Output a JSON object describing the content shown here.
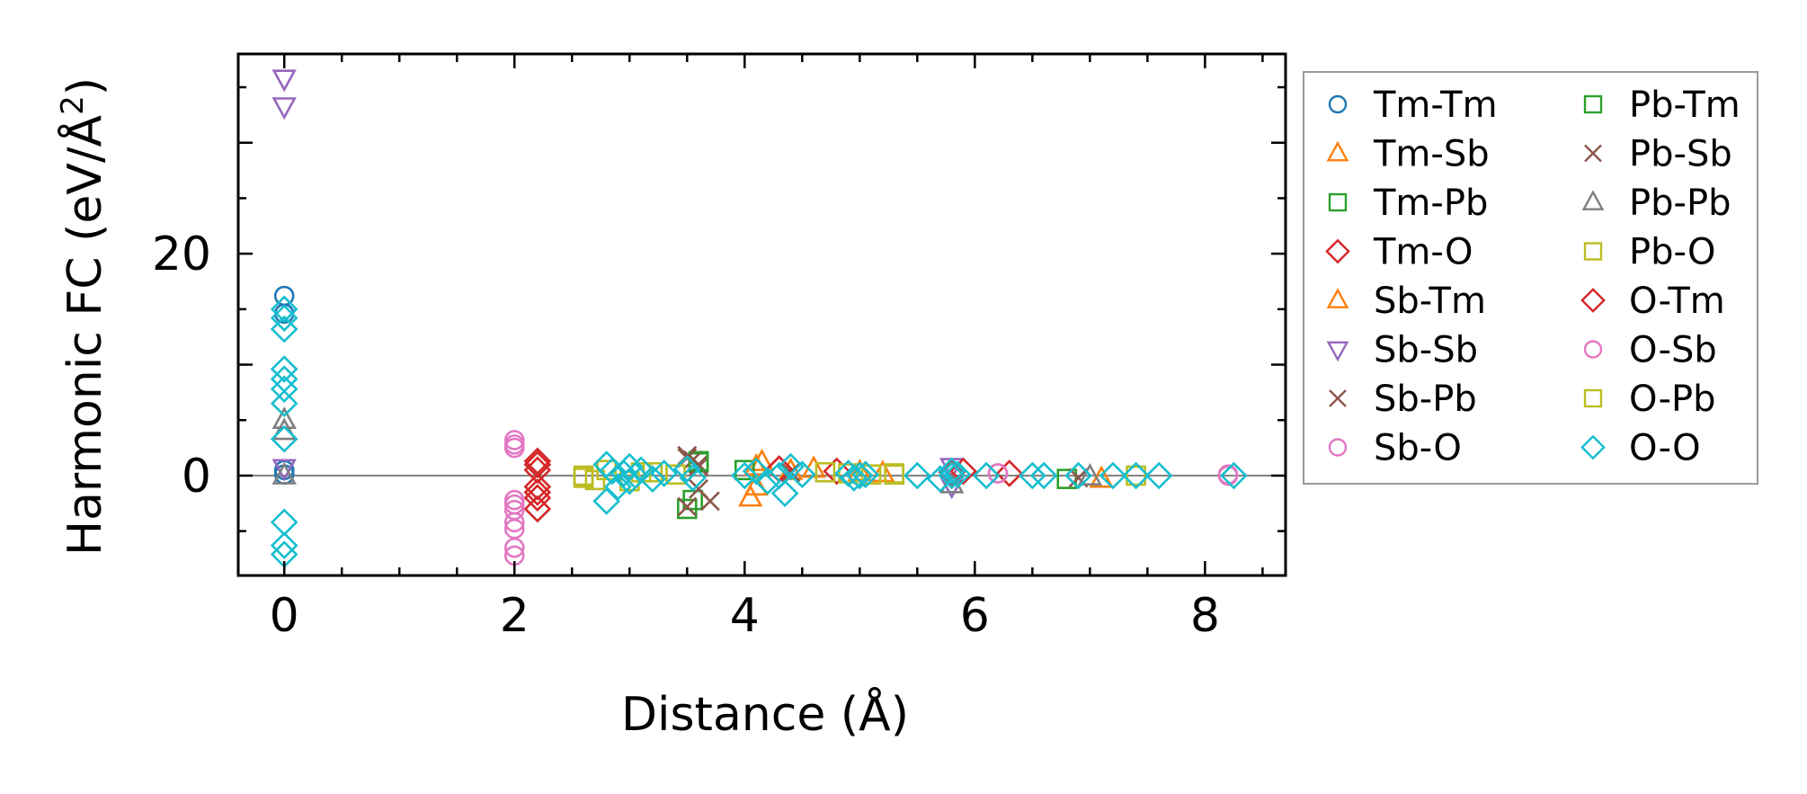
{
  "chart_data": {
    "type": "scatter",
    "title": "",
    "xlabel": "Distance (Å)",
    "ylabel_main": "Harmonic FC (eV/Å",
    "ylabel_sup": "2",
    "ylabel_close": ")",
    "xlim": [
      -0.4,
      8.7
    ],
    "ylim": [
      -9,
      38
    ],
    "xticks": [
      0,
      2,
      4,
      6,
      8
    ],
    "xtick_labels": [
      "0",
      "2",
      "4",
      "6",
      "8"
    ],
    "yticks": [
      0,
      20
    ],
    "ytick_labels": [
      "0",
      "20"
    ],
    "x_minor_step": 0.5,
    "y_minor_step": 5,
    "zero_line": true,
    "legend_position": "outside-right",
    "legend_columns": 2,
    "series": [
      {
        "name": "Tm-Tm",
        "marker": "circle",
        "color": "#1f77b4",
        "x": [
          0,
          0,
          0,
          0
        ],
        "y": [
          16.2,
          14.6,
          0.5,
          0.1
        ]
      },
      {
        "name": "Tm-Sb",
        "marker": "triangle-up",
        "color": "#ff7f0e",
        "x": [
          4.05,
          4.1,
          4.15,
          4.6,
          5.0
        ],
        "y": [
          -2.0,
          -1.0,
          1.2,
          0.6,
          0.3
        ]
      },
      {
        "name": "Tm-Pb",
        "marker": "square",
        "color": "#2ca02c",
        "x": [
          3.5,
          3.55,
          3.6,
          4.0
        ],
        "y": [
          -3.0,
          -2.2,
          1.2,
          0.5
        ]
      },
      {
        "name": "Tm-O",
        "marker": "diamond",
        "color": "#d62728",
        "x": [
          2.2,
          2.2,
          2.2,
          2.2,
          2.2,
          4.3,
          4.8,
          5.8,
          6.3
        ],
        "y": [
          1.3,
          0.5,
          -1.0,
          -2.0,
          -3.0,
          0.6,
          0.4,
          0.3,
          0.2
        ]
      },
      {
        "name": "Sb-Tm",
        "marker": "triangle-up",
        "color": "#ff7f0e",
        "x": [
          4.1,
          4.4,
          5.2,
          7.1
        ],
        "y": [
          0.8,
          0.4,
          0.2,
          -0.3
        ]
      },
      {
        "name": "Sb-Sb",
        "marker": "triangle-down",
        "color": "#9467bd",
        "x": [
          0,
          0,
          0,
          5.8,
          5.8
        ],
        "y": [
          35.8,
          33.3,
          0.7,
          0.8,
          -0.9
        ]
      },
      {
        "name": "Sb-Pb",
        "marker": "x",
        "color": "#8c564b",
        "x": [
          3.5,
          3.55,
          3.6,
          3.7,
          3.5,
          3.6
        ],
        "y": [
          1.8,
          1.4,
          0.8,
          -2.3,
          -2.8,
          1.0
        ]
      },
      {
        "name": "Sb-O",
        "marker": "circle",
        "color": "#e377c2",
        "x": [
          2.0,
          2.0,
          2.0,
          2.0,
          2.0,
          2.0,
          2.0,
          2.0,
          6.2,
          8.2
        ],
        "y": [
          3.2,
          2.5,
          -2.2,
          -3.1,
          -4.2,
          -4.8,
          -6.5,
          -7.2,
          0.2,
          0.1
        ]
      },
      {
        "name": "Pb-Tm",
        "marker": "square",
        "color": "#2ca02c",
        "x": [
          3.6,
          6.8
        ],
        "y": [
          1.3,
          -0.3
        ]
      },
      {
        "name": "Pb-Sb",
        "marker": "x",
        "color": "#8c564b",
        "x": [
          3.5,
          3.6,
          4.4,
          6.9
        ],
        "y": [
          1.6,
          -1.2,
          0.3,
          -0.2
        ]
      },
      {
        "name": "Pb-Pb",
        "marker": "triangle-up",
        "color": "#7f7f7f",
        "x": [
          0,
          0,
          0,
          5.8,
          7.0
        ],
        "y": [
          5.0,
          4.0,
          0.0,
          -0.8,
          -0.1
        ]
      },
      {
        "name": "Pb-O",
        "marker": "square",
        "color": "#bcbd22",
        "x": [
          2.6,
          2.7,
          3.1,
          4.9,
          5.3
        ],
        "y": [
          0.0,
          -0.4,
          0.3,
          0.2,
          0.1
        ]
      },
      {
        "name": "O-Tm",
        "marker": "diamond",
        "color": "#d62728",
        "x": [
          2.2,
          2.2,
          4.3,
          5.9
        ],
        "y": [
          1.0,
          -1.5,
          0.6,
          0.4
        ]
      },
      {
        "name": "O-Sb",
        "marker": "circle",
        "color": "#e377c2",
        "x": [
          2.0,
          2.0,
          6.2,
          8.2
        ],
        "y": [
          2.8,
          -2.6,
          0.2,
          0.0
        ]
      },
      {
        "name": "O-Pb",
        "marker": "square",
        "color": "#bcbd22",
        "x": [
          2.6,
          2.8,
          3.0,
          3.2,
          3.4,
          4.7,
          5.1,
          5.3,
          7.4
        ],
        "y": [
          -0.2,
          0.5,
          -0.5,
          0.3,
          0.1,
          0.3,
          0.1,
          0.2,
          0.0
        ]
      },
      {
        "name": "O-O",
        "marker": "diamond",
        "color": "#17becf",
        "x": [
          0,
          0,
          0,
          0,
          0,
          0,
          0,
          0,
          0,
          0,
          0,
          2.8,
          2.8,
          2.85,
          2.9,
          2.95,
          3.0,
          3.0,
          3.05,
          3.1,
          3.2,
          3.3,
          3.5,
          3.55,
          4.0,
          4.1,
          4.2,
          4.3,
          4.35,
          4.4,
          4.5,
          4.9,
          4.95,
          5.0,
          5.05,
          5.5,
          5.7,
          5.8,
          5.8,
          5.85,
          6.1,
          6.5,
          6.6,
          6.9,
          7.2,
          7.4,
          7.6,
          8.25
        ],
        "y": [
          15.0,
          14.2,
          13.2,
          9.6,
          8.7,
          7.8,
          6.5,
          3.3,
          -4.2,
          -6.3,
          -7.1,
          1.0,
          -2.3,
          0.4,
          -1.0,
          0.2,
          0.8,
          -0.5,
          0.0,
          0.5,
          -0.3,
          0.2,
          0.6,
          -0.2,
          0.0,
          0.4,
          -0.5,
          0.0,
          -1.6,
          0.8,
          0.1,
          0.2,
          -0.2,
          0.0,
          0.1,
          0.0,
          -0.3,
          0.0,
          0.4,
          0.1,
          0.0,
          0.0,
          0.0,
          0.0,
          0.0,
          0.0,
          0.0,
          0.0
        ]
      }
    ]
  }
}
